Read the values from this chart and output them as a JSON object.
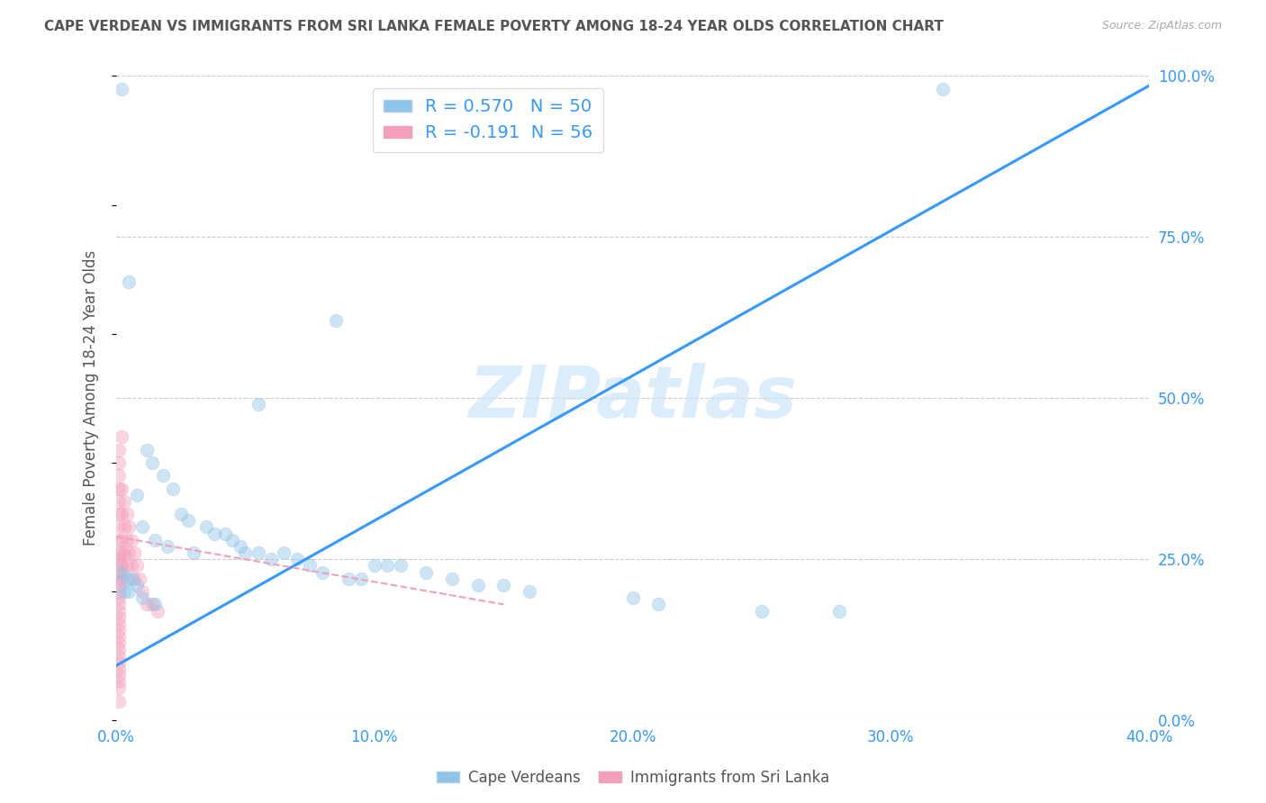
{
  "title": "CAPE VERDEAN VS IMMIGRANTS FROM SRI LANKA FEMALE POVERTY AMONG 18-24 YEAR OLDS CORRELATION CHART",
  "source": "Source: ZipAtlas.com",
  "ylabel": "Female Poverty Among 18-24 Year Olds",
  "xlim": [
    0,
    0.4
  ],
  "ylim": [
    0,
    1.0
  ],
  "xticks": [
    0.0,
    0.1,
    0.2,
    0.3,
    0.4
  ],
  "xtick_labels": [
    "0.0%",
    "10.0%",
    "20.0%",
    "30.0%",
    "40.0%"
  ],
  "yticks_right": [
    0.0,
    0.25,
    0.5,
    0.75,
    1.0
  ],
  "ytick_labels_right": [
    "0.0%",
    "25.0%",
    "50.0%",
    "75.0%",
    "100.0%"
  ],
  "blue_color": "#8ec4e8",
  "pink_color": "#f4a0bb",
  "blue_line_color": "#3399ff",
  "pink_line_color": "#f0a0b8",
  "watermark": "ZIPatlas",
  "legend_label1": "Cape Verdeans",
  "legend_label2": "Immigrants from Sri Lanka",
  "blue_scatter": [
    [
      0.002,
      0.98
    ],
    [
      0.32,
      0.98
    ],
    [
      0.005,
      0.68
    ],
    [
      0.085,
      0.62
    ],
    [
      0.055,
      0.49
    ],
    [
      0.012,
      0.42
    ],
    [
      0.014,
      0.4
    ],
    [
      0.018,
      0.38
    ],
    [
      0.022,
      0.36
    ],
    [
      0.008,
      0.35
    ],
    [
      0.025,
      0.32
    ],
    [
      0.028,
      0.31
    ],
    [
      0.035,
      0.3
    ],
    [
      0.038,
      0.29
    ],
    [
      0.01,
      0.3
    ],
    [
      0.015,
      0.28
    ],
    [
      0.042,
      0.29
    ],
    [
      0.045,
      0.28
    ],
    [
      0.048,
      0.27
    ],
    [
      0.05,
      0.26
    ],
    [
      0.055,
      0.26
    ],
    [
      0.06,
      0.25
    ],
    [
      0.02,
      0.27
    ],
    [
      0.03,
      0.26
    ],
    [
      0.065,
      0.26
    ],
    [
      0.07,
      0.25
    ],
    [
      0.075,
      0.24
    ],
    [
      0.08,
      0.23
    ],
    [
      0.1,
      0.24
    ],
    [
      0.105,
      0.24
    ],
    [
      0.11,
      0.24
    ],
    [
      0.12,
      0.23
    ],
    [
      0.002,
      0.23
    ],
    [
      0.004,
      0.22
    ],
    [
      0.006,
      0.22
    ],
    [
      0.008,
      0.21
    ],
    [
      0.09,
      0.22
    ],
    [
      0.095,
      0.22
    ],
    [
      0.13,
      0.22
    ],
    [
      0.14,
      0.21
    ],
    [
      0.15,
      0.21
    ],
    [
      0.16,
      0.2
    ],
    [
      0.003,
      0.2
    ],
    [
      0.005,
      0.2
    ],
    [
      0.01,
      0.19
    ],
    [
      0.015,
      0.18
    ],
    [
      0.2,
      0.19
    ],
    [
      0.21,
      0.18
    ],
    [
      0.25,
      0.17
    ],
    [
      0.28,
      0.17
    ]
  ],
  "pink_scatter": [
    [
      0.001,
      0.4
    ],
    [
      0.001,
      0.38
    ],
    [
      0.001,
      0.36
    ],
    [
      0.001,
      0.34
    ],
    [
      0.001,
      0.32
    ],
    [
      0.001,
      0.3
    ],
    [
      0.001,
      0.28
    ],
    [
      0.001,
      0.26
    ],
    [
      0.001,
      0.25
    ],
    [
      0.001,
      0.24
    ],
    [
      0.001,
      0.23
    ],
    [
      0.001,
      0.22
    ],
    [
      0.001,
      0.21
    ],
    [
      0.001,
      0.2
    ],
    [
      0.001,
      0.19
    ],
    [
      0.001,
      0.18
    ],
    [
      0.001,
      0.17
    ],
    [
      0.001,
      0.16
    ],
    [
      0.001,
      0.15
    ],
    [
      0.001,
      0.14
    ],
    [
      0.001,
      0.13
    ],
    [
      0.001,
      0.12
    ],
    [
      0.001,
      0.11
    ],
    [
      0.001,
      0.1
    ],
    [
      0.001,
      0.09
    ],
    [
      0.001,
      0.08
    ],
    [
      0.001,
      0.07
    ],
    [
      0.001,
      0.06
    ],
    [
      0.001,
      0.05
    ],
    [
      0.001,
      0.03
    ],
    [
      0.002,
      0.36
    ],
    [
      0.002,
      0.32
    ],
    [
      0.002,
      0.28
    ],
    [
      0.002,
      0.26
    ],
    [
      0.002,
      0.24
    ],
    [
      0.002,
      0.22
    ],
    [
      0.003,
      0.34
    ],
    [
      0.003,
      0.3
    ],
    [
      0.003,
      0.26
    ],
    [
      0.004,
      0.32
    ],
    [
      0.004,
      0.28
    ],
    [
      0.004,
      0.24
    ],
    [
      0.005,
      0.3
    ],
    [
      0.005,
      0.26
    ],
    [
      0.006,
      0.28
    ],
    [
      0.006,
      0.24
    ],
    [
      0.007,
      0.26
    ],
    [
      0.007,
      0.22
    ],
    [
      0.008,
      0.24
    ],
    [
      0.009,
      0.22
    ],
    [
      0.01,
      0.2
    ],
    [
      0.012,
      0.18
    ],
    [
      0.014,
      0.18
    ],
    [
      0.016,
      0.17
    ],
    [
      0.001,
      0.42
    ],
    [
      0.002,
      0.44
    ]
  ],
  "blue_line_x": [
    0.0,
    0.4
  ],
  "blue_line_y": [
    0.085,
    0.985
  ],
  "pink_line_x": [
    0.0,
    0.15
  ],
  "pink_line_y": [
    0.285,
    0.18
  ],
  "bg_color": "#ffffff",
  "grid_color": "#cccccc",
  "title_color": "#555555",
  "axis_color": "#3399ff",
  "marker_size": 110,
  "marker_alpha": 0.45
}
